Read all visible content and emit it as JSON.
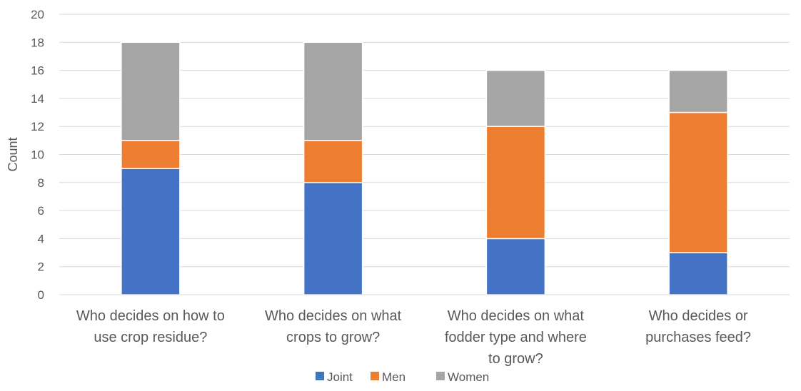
{
  "chart_data": {
    "type": "bar",
    "stacked": true,
    "title": "",
    "xlabel": "",
    "ylabel": "Count",
    "ylim": [
      0,
      20
    ],
    "yticks": [
      0,
      2,
      4,
      6,
      8,
      10,
      12,
      14,
      16,
      18,
      20
    ],
    "grid": true,
    "legend_position": "bottom",
    "categories": [
      [
        "Who decides on how to",
        "use crop residue?"
      ],
      [
        "Who decides on what",
        "crops to grow?"
      ],
      [
        "Who decides on what",
        "fodder type and where",
        "to grow?"
      ],
      [
        "Who decides or",
        "purchases feed?"
      ]
    ],
    "series": [
      {
        "name": "Joint",
        "color": "#4472C4",
        "values": [
          9,
          8,
          4,
          3
        ]
      },
      {
        "name": "Men",
        "color": "#ED7D31",
        "values": [
          2,
          3,
          8,
          10
        ]
      },
      {
        "name": "Women",
        "color": "#A5A5A5",
        "values": [
          7,
          7,
          4,
          3
        ]
      }
    ]
  }
}
